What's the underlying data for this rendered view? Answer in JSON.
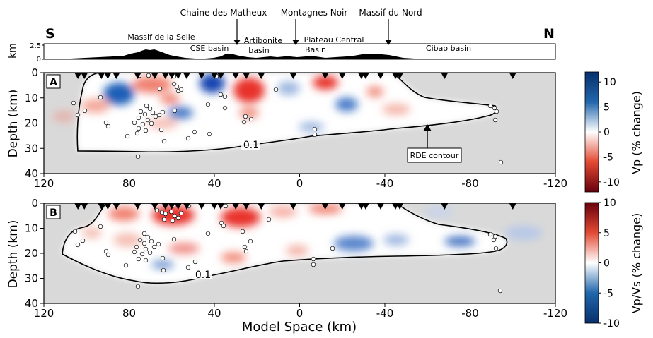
{
  "topography": {
    "ylabel": "km",
    "yticks": [
      "2.5",
      "0"
    ],
    "dir_left": "S",
    "dir_right": "N",
    "labels": [
      "Massif de la Selle",
      "CSE basin",
      "Artibonite",
      "basin",
      "Plateau Central",
      "Basin",
      "Cibao basin"
    ],
    "arrow_labels": [
      "Chaine des Matheux",
      "Montagnes Noir",
      "Massif du Nord"
    ]
  },
  "panel_a": {
    "letter": "A",
    "ylabel": "Depth (km)",
    "contour_label": "0.1",
    "callout": "RDE contour",
    "colorbar": {
      "label": "Vp (% change)",
      "ticks": [
        "10",
        "5",
        "0",
        "-5",
        "-10"
      ],
      "colors": [
        "#08306b",
        "#2166ac",
        "#ffffff",
        "#d7301f",
        "#67000d"
      ]
    }
  },
  "panel_b": {
    "letter": "B",
    "ylabel": "Depth (km)",
    "contour_label": "0.1",
    "colorbar": {
      "label": "Vp/Vs (% change)",
      "ticks": [
        "10",
        "5",
        "0",
        "-5",
        "-10"
      ],
      "colors": [
        "#67000d",
        "#d7301f",
        "#ffffff",
        "#2166ac",
        "#08306b"
      ]
    }
  },
  "x_axis": {
    "label": "Model Space (km)",
    "ticks": [
      "120",
      "80",
      "40",
      "0",
      "-40",
      "-80",
      "-120"
    ]
  },
  "y_axis": {
    "ticks": [
      "0",
      "10",
      "20",
      "30",
      "40"
    ]
  },
  "chart_data": {
    "type": "heatmap",
    "x": {
      "range": [
        120,
        -120
      ],
      "ticks": [
        120,
        80,
        40,
        0,
        -40,
        -80,
        -120
      ]
    },
    "y": {
      "range": [
        0,
        40
      ],
      "ticks": [
        0,
        10,
        20,
        30,
        40
      ],
      "inverted": true
    },
    "topography_elevation_range_km": [
      0,
      2.5
    ],
    "stations_x_km": [
      104,
      101,
      93,
      90,
      86,
      76,
      68,
      63,
      60,
      57,
      53,
      46,
      40,
      37,
      30,
      25,
      18,
      3,
      -12,
      -20,
      -29,
      -31,
      -38,
      -45,
      -47,
      -68,
      -100
    ],
    "series": [
      {
        "name": "A",
        "colorbar_range": [
          -12,
          12
        ]
      },
      {
        "name": "B",
        "colorbar_range": [
          -10,
          10
        ]
      }
    ]
  }
}
